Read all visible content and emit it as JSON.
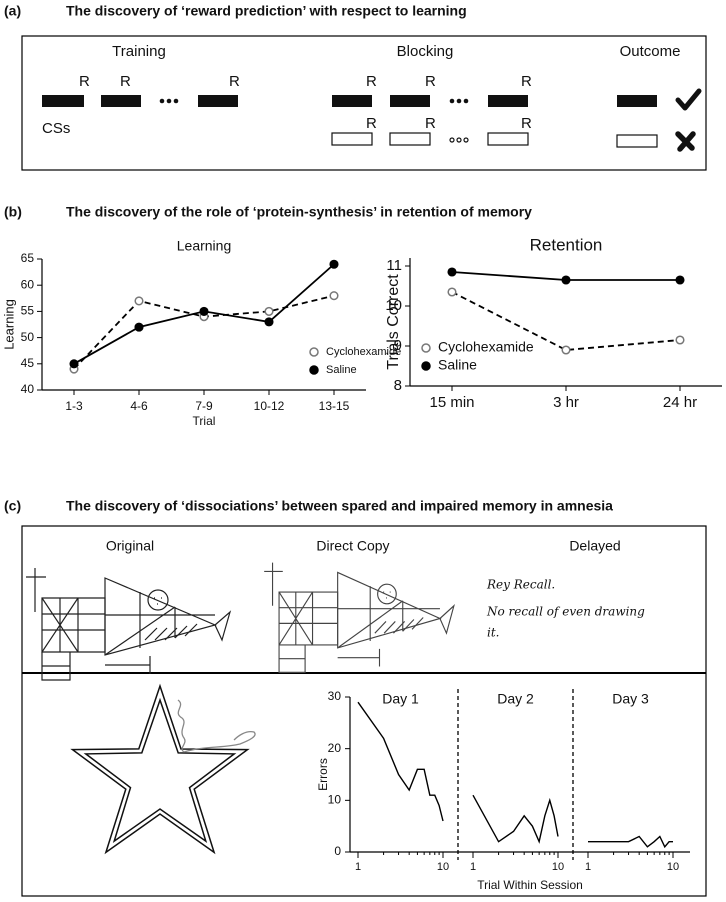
{
  "panel_a": {
    "label": "(a)",
    "title": "The discovery of ‘reward prediction’ with respect to learning",
    "training": "Training",
    "blocking": "Blocking",
    "outcome": "Outcome",
    "reinforcer": "R",
    "cs_label": "CSs"
  },
  "panel_b": {
    "label": "(b)",
    "title": "The discovery of the role of ‘protein-synthesis’ in retention of memory"
  },
  "panel_c": {
    "label": "(c)",
    "title": "The discovery of ‘dissociations’ between spared and impaired memory in amnesia",
    "original": "Original",
    "direct_copy": "Direct Copy",
    "delayed": "Delayed",
    "recall_notes": [
      "Rey Recall.",
      "No recall of even drawing",
      "it."
    ]
  },
  "chart_data": [
    {
      "type": "line",
      "title": "Learning",
      "x_label": "Trial",
      "y_label": "Learning",
      "categories": [
        "1-3",
        "4-6",
        "7-9",
        "10-12",
        "13-15"
      ],
      "ylim": [
        40,
        65
      ],
      "yticks": [
        40,
        45,
        50,
        55,
        60,
        65
      ],
      "legend": "lower right",
      "series": [
        {
          "name": "Cyclohexamide",
          "color": "#000000",
          "marker": "open",
          "dashed": true,
          "values": [
            44,
            57,
            54,
            55,
            58
          ]
        },
        {
          "name": "Saline",
          "color": "#000000",
          "marker": "filled",
          "dashed": false,
          "values": [
            45,
            52,
            55,
            53,
            64
          ]
        }
      ]
    },
    {
      "type": "line",
      "title": "Retention",
      "y_label": "Trials Correct",
      "categories": [
        "15 min",
        "3 hr",
        "24 hr"
      ],
      "ylim": [
        8,
        11.2
      ],
      "yticks": [
        8,
        9,
        10,
        11
      ],
      "legend": "lower left",
      "series": [
        {
          "name": "Cyclohexamide",
          "color": "#000000",
          "marker": "open",
          "dashed": true,
          "values": [
            10.35,
            8.9,
            9.15
          ]
        },
        {
          "name": "Saline",
          "color": "#000000",
          "marker": "filled",
          "dashed": false,
          "values": [
            10.85,
            10.65,
            10.65
          ]
        }
      ]
    },
    {
      "type": "segmented-line",
      "x_label": "Trial Within Session",
      "y_label": "Errors",
      "log_x": true,
      "x": [
        1,
        2,
        3,
        4,
        5,
        6,
        7,
        8,
        9,
        10
      ],
      "xlim": [
        1,
        10
      ],
      "xticks": [
        1,
        10
      ],
      "xminorticks": [
        2,
        3,
        4,
        5,
        6,
        7,
        8,
        9
      ],
      "ylim": [
        0,
        30
      ],
      "yticks": [
        0,
        10,
        20,
        30
      ],
      "series": [
        {
          "name": "Day 1",
          "color": "#000000",
          "values": [
            29,
            22,
            15,
            12,
            16,
            16,
            11,
            11,
            9,
            6
          ]
        },
        {
          "name": "Day 2",
          "color": "#000000",
          "values": [
            11,
            2,
            4,
            7,
            5,
            2,
            7,
            10,
            7,
            3
          ]
        },
        {
          "name": "Day 3",
          "color": "#000000",
          "values": [
            2,
            2,
            2,
            3,
            1,
            2,
            3,
            1,
            2,
            2
          ]
        }
      ]
    }
  ]
}
